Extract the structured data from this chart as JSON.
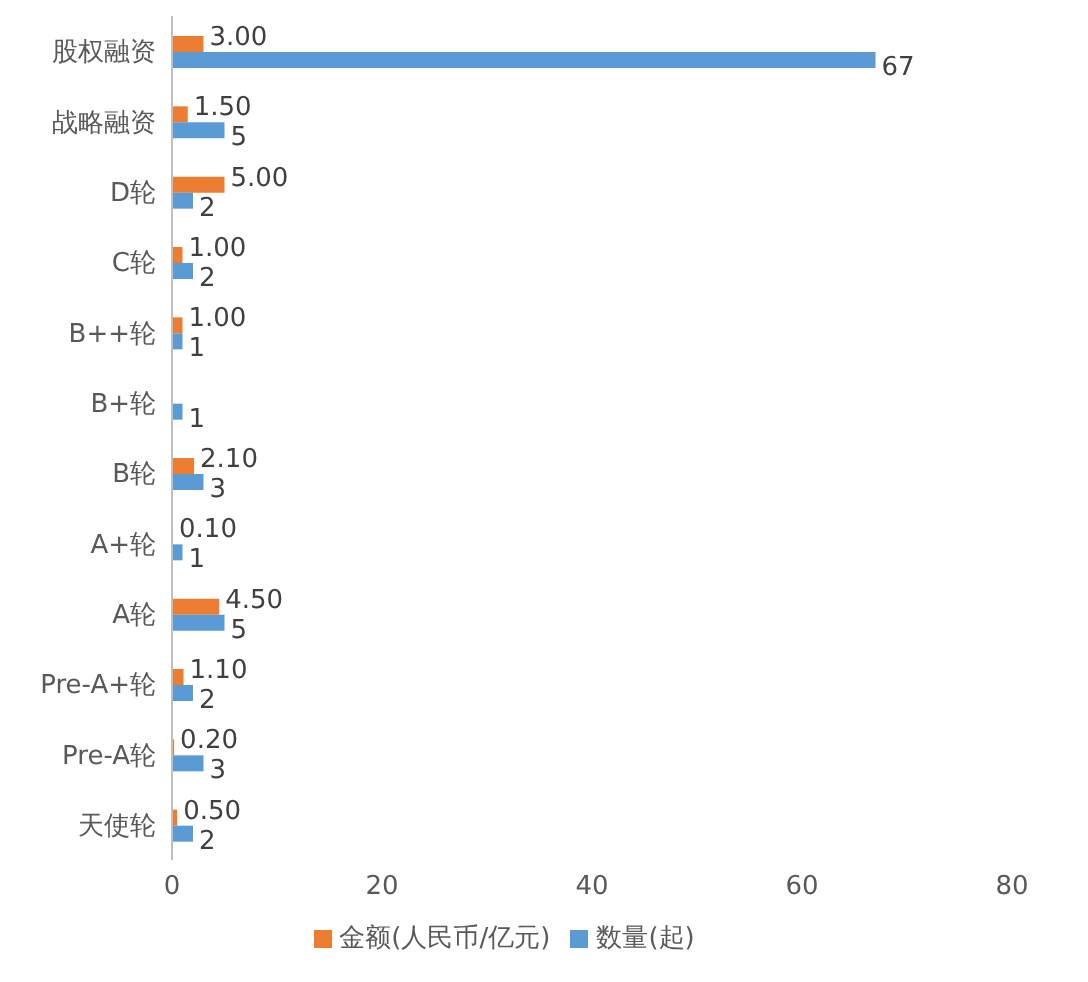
{
  "chart_data": {
    "type": "bar",
    "orientation": "horizontal",
    "categories": [
      "股权融资",
      "战略融资",
      "D轮",
      "C轮",
      "B++轮",
      "B+轮",
      "B轮",
      "A+轮",
      "A轮",
      "Pre-A+轮",
      "Pre-A轮",
      "天使轮"
    ],
    "series": [
      {
        "name": "金额(人民币/亿元)",
        "color": "#ed7d31",
        "values": [
          3,
          1.5,
          5,
          1,
          1,
          null,
          2.1,
          0.1,
          4.5,
          1.1,
          0.2,
          0.5
        ],
        "value_labels": [
          "3.00",
          "1.50",
          "5.00",
          "1.00",
          "1.00",
          null,
          "2.10",
          "0.10",
          "4.50",
          "1.10",
          "0.20",
          "0.50"
        ]
      },
      {
        "name": "数量(起)",
        "color": "#5b9bd5",
        "values": [
          67,
          5,
          2,
          2,
          1,
          1,
          3,
          1,
          5,
          2,
          3,
          2
        ],
        "value_labels": [
          "67",
          "5",
          "2",
          "2",
          "1",
          "1",
          "3",
          "1",
          "5",
          "2",
          "3",
          "2"
        ]
      }
    ],
    "xlim": [
      0,
      80
    ],
    "xticks": [
      0,
      20,
      40,
      60,
      80
    ],
    "grid": false,
    "legend": "bottom"
  }
}
